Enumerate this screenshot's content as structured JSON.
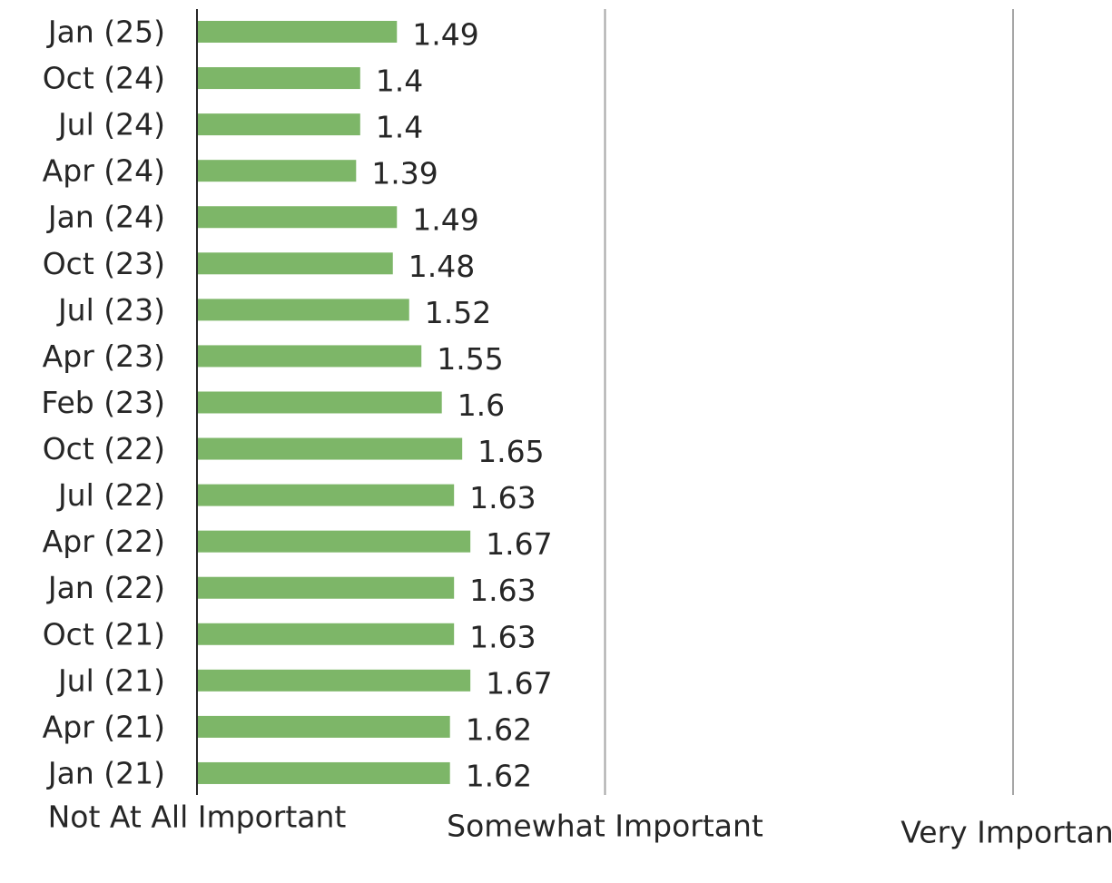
{
  "chart_data": {
    "type": "bar",
    "orientation": "horizontal",
    "categories": [
      "Jan (25)",
      "Oct (24)",
      "Jul (24)",
      "Apr (24)",
      "Jan (24)",
      "Oct (23)",
      "Jul (23)",
      "Apr (23)",
      "Feb (23)",
      "Oct (22)",
      "Jul (22)",
      "Apr (22)",
      "Jan (22)",
      "Oct (21)",
      "Jul (21)",
      "Apr (21)",
      "Jan (21)"
    ],
    "values": [
      1.49,
      1.4,
      1.4,
      1.39,
      1.49,
      1.48,
      1.52,
      1.55,
      1.6,
      1.65,
      1.63,
      1.67,
      1.63,
      1.63,
      1.67,
      1.62,
      1.62
    ],
    "data_labels": [
      "1.49",
      "1.4",
      "1.4",
      "1.39",
      "1.49",
      "1.48",
      "1.52",
      "1.55",
      "1.6",
      "1.65",
      "1.63",
      "1.67",
      "1.63",
      "1.63",
      "1.67",
      "1.62",
      "1.62"
    ],
    "xlim": [
      1,
      3
    ],
    "x_ticks": [
      1,
      2,
      3
    ],
    "x_tick_labels": [
      "Not At All Important",
      "Somewhat Important",
      "Very Important"
    ],
    "grid": true,
    "colors": {
      "bar": "#7db668",
      "axis": "#262626",
      "grid": "#a6a6a6",
      "text": "#262626"
    }
  }
}
